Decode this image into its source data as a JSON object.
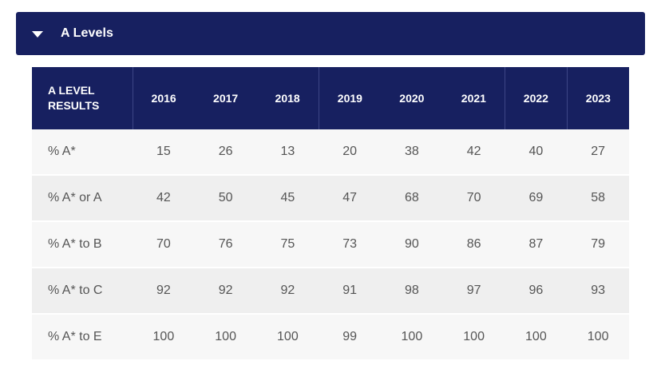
{
  "accordion": {
    "title": "A Levels",
    "icon": "caret-down-icon"
  },
  "table": {
    "header_label_line1": "A LEVEL",
    "header_label_line2": "RESULTS",
    "years": [
      "2016",
      "2017",
      "2018",
      "2019",
      "2020",
      "2021",
      "2022",
      "2023"
    ],
    "rows": [
      {
        "label": "% A*",
        "values": [
          "15",
          "26",
          "13",
          "20",
          "38",
          "42",
          "40",
          "27"
        ]
      },
      {
        "label": "% A* or A",
        "values": [
          "42",
          "50",
          "45",
          "47",
          "68",
          "70",
          "69",
          "58"
        ]
      },
      {
        "label": "% A* to B",
        "values": [
          "70",
          "76",
          "75",
          "73",
          "90",
          "86",
          "87",
          "79"
        ]
      },
      {
        "label": "% A* to C",
        "values": [
          "92",
          "92",
          "92",
          "91",
          "98",
          "97",
          "96",
          "93"
        ]
      },
      {
        "label": "% A* to E",
        "values": [
          "100",
          "100",
          "100",
          "99",
          "100",
          "100",
          "100",
          "100"
        ]
      }
    ]
  },
  "colors": {
    "header_bg": "#172060",
    "row_odd": "#f7f7f7",
    "row_even": "#efefef"
  }
}
